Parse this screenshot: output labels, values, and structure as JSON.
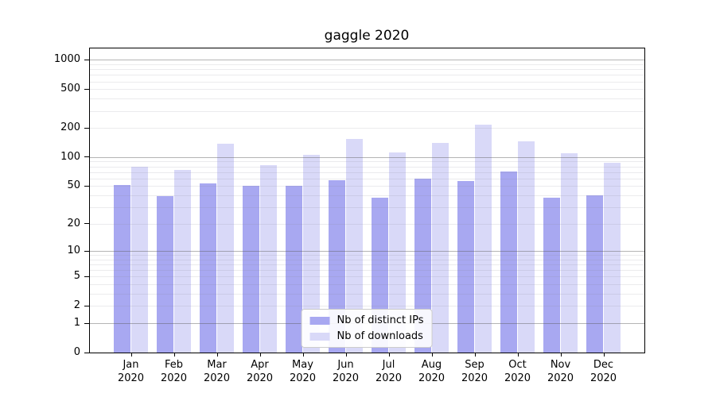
{
  "title": "gaggle 2020",
  "chart_data": {
    "type": "bar",
    "title": "gaggle 2020",
    "categories": [
      "Jan 2020",
      "Feb 2020",
      "Mar 2020",
      "Apr 2020",
      "May 2020",
      "Jun 2020",
      "Jul 2020",
      "Aug 2020",
      "Sep 2020",
      "Oct 2020",
      "Nov 2020",
      "Dec 2020"
    ],
    "months": [
      "Jan",
      "Feb",
      "Mar",
      "Apr",
      "May",
      "Jun",
      "Jul",
      "Aug",
      "Sep",
      "Oct",
      "Nov",
      "Dec"
    ],
    "year": "2020",
    "series": [
      {
        "name": "Nb of distinct IPs",
        "color": "#a8a8f1",
        "values": [
          51,
          39,
          53,
          50,
          50,
          57,
          38,
          60,
          56,
          71,
          38,
          40
        ]
      },
      {
        "name": "Nb of downloads",
        "color": "#d9d9f8",
        "values": [
          80,
          73,
          137,
          83,
          106,
          155,
          112,
          139,
          215,
          146,
          110,
          88
        ]
      }
    ],
    "xlabel": "",
    "ylabel": "",
    "yscale": "log(v+1)",
    "ylim": [
      0,
      1300
    ],
    "yticks": [
      0,
      1,
      2,
      5,
      10,
      20,
      50,
      100,
      200,
      500,
      1000
    ],
    "ytick_labels": [
      "0",
      "1",
      "2",
      "5",
      "10",
      "20",
      "50",
      "100",
      "200",
      "500",
      "1000"
    ],
    "grid": {
      "major": true,
      "minor": true
    },
    "legend_position": "lower center"
  },
  "legend": {
    "items": [
      {
        "label": "Nb of distinct IPs",
        "color": "#a8a8f1"
      },
      {
        "label": "Nb of downloads",
        "color": "#d9d9f8"
      }
    ]
  },
  "colors": {
    "bar_dark": "#a8a8f1",
    "bar_light": "#d9d9f8",
    "major_grid": "#b0b0b0",
    "minor_grid": "#e7e7ea",
    "spine": "#000000",
    "legend_border": "#cccccc",
    "background": "#ffffff"
  }
}
